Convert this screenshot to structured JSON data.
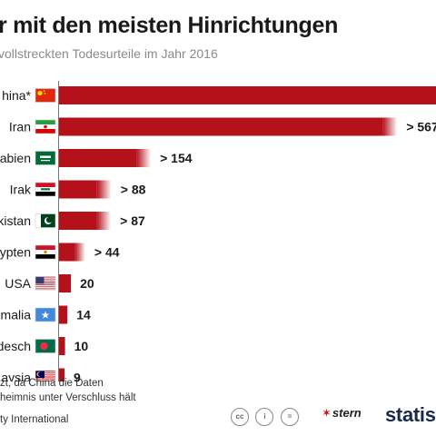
{
  "header": {
    "title": "r mit den meisten Hinrichtungen",
    "subtitle": "vollstreckten Todesurteile im Jahr 2016"
  },
  "chart_data": {
    "type": "bar",
    "orientation": "horizontal",
    "categories": [
      "hina*",
      "Iran",
      "abien",
      "Irak",
      "kistan",
      "ypten",
      "USA",
      "malia",
      "desch",
      "aysia"
    ],
    "values": [
      null,
      567,
      154,
      88,
      87,
      44,
      20,
      14,
      10,
      9
    ],
    "value_labels": [
      "",
      "> 567",
      "> 154",
      "> 88",
      "> 87",
      "> 44",
      "20",
      "14",
      "10",
      "9"
    ],
    "title": "r mit den meisten Hinrichtungen",
    "subtitle": "vollstreckten Todesurteile im Jahr 2016",
    "xlabel": "",
    "ylabel": "",
    "xlim": [
      0,
      632
    ],
    "bar_color": "#b5111b",
    "grid": false
  },
  "flags": [
    "china-flag-icon",
    "iran-flag-icon",
    "saudi-arabia-flag-icon",
    "iraq-flag-icon",
    "pakistan-flag-icon",
    "egypt-flag-icon",
    "usa-flag-icon",
    "somalia-flag-icon",
    "bangladesh-flag-icon",
    "malaysia-flag-icon"
  ],
  "footer": {
    "note_line1": "zt, da China die Daten",
    "note_line2": "heimnis unter Verschluss hält",
    "source": "ty International",
    "license_icons": [
      "cc-icon",
      "by-icon",
      "nd-icon"
    ],
    "license_labels": [
      "cc",
      "i",
      "="
    ],
    "brand_stern": "stern",
    "brand_statista": "statist"
  }
}
